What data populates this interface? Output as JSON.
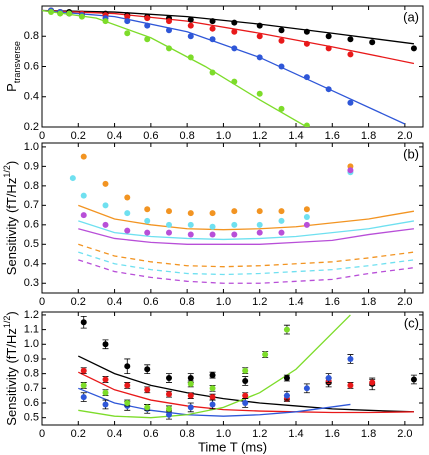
{
  "chart_data": [
    {
      "type": "scatter",
      "annotation": "(a)",
      "ylabel": [
        "P",
        "transverse"
      ],
      "xlim": [
        0,
        2.1
      ],
      "xticks": [
        0,
        0.2,
        0.4,
        0.6,
        0.8,
        {
          "value": 1,
          "label": "1.0"
        },
        1.2,
        1.4,
        1.6,
        1.8,
        {
          "value": 2,
          "label": "2.0"
        }
      ],
      "ylim": [
        0.2,
        1.0
      ],
      "yticks": [
        0.2,
        0.4,
        0.6,
        0.8
      ],
      "series": [
        {
          "color": "#000000",
          "x": [
            0.05,
            0.1,
            0.15,
            0.22,
            0.35,
            0.47,
            0.58,
            0.7,
            0.82,
            0.94,
            1.06,
            1.2,
            1.32,
            1.46,
            1.58,
            1.7,
            1.82,
            2.05
          ],
          "values": [
            0.97,
            0.96,
            0.96,
            0.95,
            0.95,
            0.94,
            0.93,
            0.92,
            0.91,
            0.9,
            0.89,
            0.87,
            0.84,
            0.83,
            0.8,
            0.78,
            0.76,
            0.72
          ]
        },
        {
          "color": "#e8191a",
          "x": [
            0.05,
            0.1,
            0.15,
            0.22,
            0.35,
            0.47,
            0.58,
            0.7,
            0.82,
            0.94,
            1.06,
            1.2,
            1.32,
            1.46,
            1.58,
            1.7
          ],
          "values": [
            0.97,
            0.96,
            0.95,
            0.95,
            0.94,
            0.93,
            0.92,
            0.9,
            0.87,
            0.85,
            0.83,
            0.8,
            0.77,
            0.75,
            0.72,
            0.68
          ]
        },
        {
          "color": "#2f57d8",
          "x": [
            0.05,
            0.1,
            0.15,
            0.22,
            0.35,
            0.47,
            0.58,
            0.7,
            0.82,
            0.94,
            1.06,
            1.2,
            1.32,
            1.46,
            1.58,
            1.7
          ],
          "values": [
            0.97,
            0.96,
            0.95,
            0.94,
            0.92,
            0.9,
            0.87,
            0.84,
            0.8,
            0.78,
            0.72,
            0.66,
            0.6,
            0.53,
            0.45,
            0.36
          ]
        },
        {
          "color": "#7ddc2a",
          "x": [
            0.05,
            0.1,
            0.15,
            0.22,
            0.35,
            0.47,
            0.58,
            0.7,
            0.82,
            0.94,
            1.06,
            1.2,
            1.32,
            1.46
          ],
          "values": [
            0.96,
            0.95,
            0.95,
            0.93,
            0.9,
            0.82,
            0.78,
            0.72,
            0.66,
            0.56,
            0.5,
            0.42,
            0.32,
            0.21
          ]
        }
      ],
      "lines": [
        {
          "color": "#000000",
          "x": [
            0,
            0.4,
            0.8,
            1.2,
            1.6,
            2.05
          ],
          "values": [
            0.97,
            0.96,
            0.93,
            0.88,
            0.82,
            0.75
          ]
        },
        {
          "color": "#e8191a",
          "x": [
            0,
            0.4,
            0.8,
            1.2,
            1.6,
            2.05
          ],
          "values": [
            0.97,
            0.95,
            0.9,
            0.82,
            0.73,
            0.62
          ]
        },
        {
          "color": "#2f57d8",
          "x": [
            0,
            0.4,
            0.8,
            1.2,
            1.6,
            2.0
          ],
          "values": [
            0.97,
            0.93,
            0.83,
            0.66,
            0.44,
            0.22
          ]
        },
        {
          "color": "#7ddc2a",
          "x": [
            0,
            0.3,
            0.6,
            0.9,
            1.2,
            1.46
          ],
          "values": [
            0.97,
            0.92,
            0.79,
            0.6,
            0.38,
            0.2
          ]
        }
      ]
    },
    {
      "type": "scatter",
      "annotation": "(b)",
      "ylabel": [
        "Sensitivity (fT/Hz",
        "1/2",
        ")"
      ],
      "xlim": [
        0,
        2.1
      ],
      "xticks": [
        0,
        0.2,
        0.4,
        0.6,
        0.8,
        {
          "value": 1,
          "label": "1.0"
        },
        1.2,
        1.4,
        1.6,
        1.8,
        {
          "value": 2,
          "label": "2.0"
        }
      ],
      "ylim": [
        0.25,
        1.02
      ],
      "yticks": [
        0.3,
        0.4,
        0.5,
        0.6,
        0.7,
        0.8,
        0.9,
        {
          "value": 1,
          "label": "1.0"
        }
      ],
      "series": [
        {
          "color": "#f29422",
          "x": [
            0.23,
            0.35,
            0.47,
            0.58,
            0.7,
            0.82,
            0.94,
            1.06,
            1.2,
            1.32,
            1.46,
            1.7
          ],
          "values": [
            0.95,
            0.81,
            0.74,
            0.68,
            0.67,
            0.66,
            0.66,
            0.67,
            0.67,
            0.67,
            0.68,
            0.9
          ]
        },
        {
          "color": "#6fe0f0",
          "x": [
            0.17,
            0.23,
            0.35,
            0.47,
            0.58,
            0.7,
            0.82,
            0.94,
            1.06,
            1.2,
            1.32,
            1.46,
            1.7
          ],
          "values": [
            0.84,
            0.75,
            0.7,
            0.66,
            0.62,
            0.6,
            0.6,
            0.59,
            0.6,
            0.6,
            0.62,
            0.64,
            0.87
          ]
        },
        {
          "color": "#b84fd8",
          "x": [
            0.23,
            0.35,
            0.47,
            0.58,
            0.7,
            0.82,
            0.94,
            1.06,
            1.2,
            1.32,
            1.46,
            1.7
          ],
          "values": [
            0.65,
            0.6,
            0.57,
            0.56,
            0.56,
            0.55,
            0.55,
            0.55,
            0.56,
            0.56,
            0.6,
            0.88
          ]
        }
      ],
      "lines": [
        {
          "color": "#f29422",
          "x": [
            0.2,
            0.4,
            0.6,
            0.8,
            1.0,
            1.2,
            1.4,
            1.6,
            1.8,
            2.05
          ],
          "values": [
            0.7,
            0.63,
            0.6,
            0.58,
            0.575,
            0.58,
            0.59,
            0.61,
            0.63,
            0.67
          ]
        },
        {
          "color": "#6fe0f0",
          "x": [
            0.2,
            0.4,
            0.6,
            0.8,
            1.0,
            1.2,
            1.4,
            1.6,
            1.8,
            2.05
          ],
          "values": [
            0.62,
            0.56,
            0.54,
            0.53,
            0.525,
            0.53,
            0.54,
            0.56,
            0.58,
            0.62
          ]
        },
        {
          "color": "#b84fd8",
          "x": [
            0.2,
            0.4,
            0.6,
            0.8,
            1.0,
            1.2,
            1.4,
            1.6,
            1.8,
            2.05
          ],
          "values": [
            0.58,
            0.53,
            0.51,
            0.5,
            0.5,
            0.5,
            0.51,
            0.52,
            0.55,
            0.58
          ]
        },
        {
          "color": "#f29422",
          "dashed": true,
          "x": [
            0.2,
            0.4,
            0.6,
            0.8,
            1.0,
            1.2,
            1.4,
            1.6,
            1.8,
            2.05
          ],
          "values": [
            0.5,
            0.44,
            0.41,
            0.39,
            0.385,
            0.39,
            0.4,
            0.41,
            0.43,
            0.46
          ]
        },
        {
          "color": "#6fe0f0",
          "dashed": true,
          "x": [
            0.2,
            0.4,
            0.6,
            0.8,
            1.0,
            1.2,
            1.4,
            1.6,
            1.8,
            2.05
          ],
          "values": [
            0.46,
            0.4,
            0.37,
            0.35,
            0.345,
            0.35,
            0.36,
            0.37,
            0.39,
            0.42
          ]
        },
        {
          "color": "#b84fd8",
          "dashed": true,
          "x": [
            0.2,
            0.4,
            0.6,
            0.8,
            1.0,
            1.2,
            1.4,
            1.6,
            1.8,
            2.05
          ],
          "values": [
            0.42,
            0.36,
            0.33,
            0.31,
            0.3,
            0.3,
            0.31,
            0.32,
            0.35,
            0.38
          ]
        }
      ]
    },
    {
      "type": "scatter",
      "annotation": "(c)",
      "ylabel": [
        "Sensitivity (fT/Hz",
        "1/2",
        ")"
      ],
      "xlabel": "Time T (ms)",
      "xlim": [
        0,
        2.1
      ],
      "xticks": [
        0,
        0.2,
        0.4,
        0.6,
        0.8,
        {
          "value": 1,
          "label": "1.0"
        },
        1.2,
        1.4,
        1.6,
        1.8,
        {
          "value": 2,
          "label": "2.0"
        }
      ],
      "ylim": [
        0.45,
        1.22
      ],
      "yticks": [
        0.5,
        0.6,
        0.7,
        0.8,
        0.9,
        {
          "value": 1,
          "label": "1.0"
        },
        1.1,
        1.2
      ],
      "series": [
        {
          "color": "#000000",
          "x": [
            0.23,
            0.35,
            0.47,
            0.58,
            0.7,
            0.82,
            0.94,
            1.12,
            1.35,
            1.58,
            1.82,
            2.05
          ],
          "values": [
            1.15,
            1.0,
            0.85,
            0.83,
            0.77,
            0.77,
            0.79,
            0.75,
            0.77,
            0.74,
            0.73,
            0.76
          ],
          "errors": [
            0.04,
            0.03,
            0.05,
            0.03,
            0.03,
            0.03,
            0.02,
            0.03,
            0.02,
            0.03,
            0.04,
            0.03
          ]
        },
        {
          "color": "#e8191a",
          "x": [
            0.23,
            0.35,
            0.47,
            0.58,
            0.7,
            0.82,
            0.94,
            1.12,
            1.35,
            1.58,
            1.7,
            1.82
          ],
          "values": [
            0.82,
            0.76,
            0.72,
            0.69,
            0.66,
            0.65,
            0.64,
            0.65,
            0.63,
            0.75,
            0.72,
            0.74
          ],
          "errors": [
            0.02,
            0.02,
            0.02,
            0.02,
            0.02,
            0.02,
            0.02,
            0.02,
            0.02,
            0.02,
            0.02,
            0.02
          ]
        },
        {
          "color": "#2f57d8",
          "x": [
            0.23,
            0.35,
            0.47,
            0.58,
            0.7,
            0.82,
            0.94,
            1.12,
            1.35,
            1.46,
            1.58,
            1.7
          ],
          "values": [
            0.64,
            0.59,
            0.58,
            0.56,
            0.52,
            0.57,
            0.59,
            0.6,
            0.65,
            0.7,
            0.77,
            0.9
          ],
          "errors": [
            0.03,
            0.03,
            0.03,
            0.03,
            0.03,
            0.03,
            0.03,
            0.03,
            0.03,
            0.03,
            0.03,
            0.03
          ]
        },
        {
          "color": "#7ddc2a",
          "x": [
            0.23,
            0.35,
            0.47,
            0.58,
            0.7,
            0.82,
            0.94,
            1.12,
            1.23,
            1.35
          ],
          "values": [
            0.72,
            0.67,
            0.6,
            0.57,
            0.56,
            0.73,
            0.7,
            0.82,
            0.93,
            1.1
          ],
          "errors": [
            0.02,
            0.02,
            0.02,
            0.02,
            0.02,
            0.02,
            0.02,
            0.02,
            0.02,
            0.03
          ]
        }
      ],
      "lines": [
        {
          "color": "#000000",
          "x": [
            0.2,
            0.4,
            0.6,
            0.8,
            1.0,
            1.2,
            1.4,
            1.6,
            1.8,
            2.05
          ],
          "values": [
            0.92,
            0.8,
            0.72,
            0.67,
            0.63,
            0.6,
            0.58,
            0.56,
            0.55,
            0.54
          ]
        },
        {
          "color": "#e8191a",
          "x": [
            0.2,
            0.4,
            0.6,
            0.8,
            1.0,
            1.2,
            1.4,
            1.6,
            1.8,
            2.05
          ],
          "values": [
            0.81,
            0.69,
            0.62,
            0.58,
            0.555,
            0.545,
            0.54,
            0.535,
            0.535,
            0.54
          ]
        },
        {
          "color": "#2f57d8",
          "x": [
            0.2,
            0.4,
            0.6,
            0.8,
            1.0,
            1.2,
            1.4,
            1.7
          ],
          "values": [
            0.7,
            0.6,
            0.55,
            0.52,
            0.51,
            0.52,
            0.54,
            0.59
          ]
        },
        {
          "color": "#7ddc2a",
          "x": [
            0.2,
            0.4,
            0.6,
            0.8,
            1.0,
            1.2,
            1.4,
            1.7
          ],
          "values": [
            0.55,
            0.51,
            0.5,
            0.52,
            0.57,
            0.67,
            0.83,
            1.2
          ]
        }
      ]
    }
  ]
}
